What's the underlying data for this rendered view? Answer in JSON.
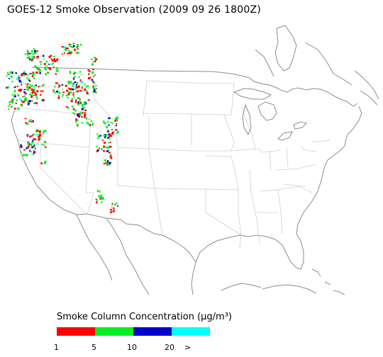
{
  "title": "GOES-12 Smoke Observation (2009 09 26  1800Z)",
  "legend": {
    "title": "Smoke Column Concentration (μg/m³)",
    "ticks": [
      "1",
      "5",
      "10",
      "20",
      ">"
    ],
    "colors": [
      "#ff0000",
      "#00ee22",
      "#0000cc",
      "#00ffff"
    ]
  },
  "map": {
    "outline_color": "#8c8c8c",
    "border_color": "#cfcfcf"
  }
}
